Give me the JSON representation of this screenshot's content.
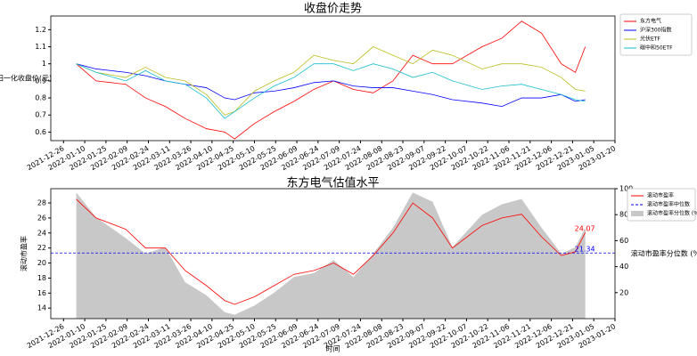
{
  "chart_data": [
    {
      "type": "line",
      "title": "收盘价走势",
      "ylabel": "归一化收盘价(元)",
      "x": [
        "2022-01-04",
        "2022-01-18",
        "2022-02-08",
        "2022-02-22",
        "2022-03-08",
        "2022-03-22",
        "2022-04-06",
        "2022-04-19",
        "2022-04-26",
        "2022-05-10",
        "2022-05-24",
        "2022-06-07",
        "2022-06-21",
        "2022-07-05",
        "2022-07-19",
        "2022-08-02",
        "2022-08-16",
        "2022-08-30",
        "2022-09-13",
        "2022-09-27",
        "2022-10-18",
        "2022-11-01",
        "2022-11-15",
        "2022-11-29",
        "2022-12-13",
        "2022-12-23",
        "2022-12-30"
      ],
      "series": [
        {
          "name": "东方电气",
          "color": "#ff0000",
          "values": [
            1.0,
            0.9,
            0.88,
            0.8,
            0.75,
            0.68,
            0.62,
            0.6,
            0.56,
            0.65,
            0.72,
            0.78,
            0.85,
            0.9,
            0.85,
            0.83,
            0.9,
            1.05,
            1.0,
            1.0,
            1.1,
            1.15,
            1.25,
            1.18,
            1.0,
            0.95,
            1.1
          ]
        },
        {
          "name": "沪深300指数",
          "color": "#0000ff",
          "values": [
            1.0,
            0.97,
            0.95,
            0.93,
            0.9,
            0.88,
            0.86,
            0.8,
            0.79,
            0.83,
            0.84,
            0.86,
            0.89,
            0.9,
            0.87,
            0.86,
            0.86,
            0.84,
            0.82,
            0.79,
            0.77,
            0.75,
            0.8,
            0.8,
            0.82,
            0.78,
            0.79
          ]
        },
        {
          "name": "光伏ETF",
          "color": "#bcbd22",
          "values": [
            1.0,
            0.95,
            0.92,
            0.98,
            0.92,
            0.9,
            0.82,
            0.7,
            0.72,
            0.84,
            0.9,
            0.95,
            1.05,
            1.02,
            1.0,
            1.1,
            1.05,
            1.0,
            1.08,
            1.05,
            0.97,
            1.0,
            1.0,
            0.98,
            0.92,
            0.85,
            0.84
          ]
        },
        {
          "name": "碳中和50ETF",
          "color": "#17becf",
          "values": [
            1.0,
            0.95,
            0.9,
            0.96,
            0.9,
            0.88,
            0.8,
            0.68,
            0.72,
            0.8,
            0.87,
            0.92,
            1.0,
            1.0,
            0.96,
            1.0,
            0.97,
            0.92,
            0.95,
            0.9,
            0.85,
            0.87,
            0.88,
            0.85,
            0.82,
            0.79,
            0.78
          ]
        }
      ],
      "xlim": [
        "2021-12-17",
        "2023-01-20"
      ],
      "xticks": [
        "2021-12-26",
        "2022-01-10",
        "2022-01-25",
        "2022-02-09",
        "2022-02-24",
        "2022-03-11",
        "2022-03-26",
        "2022-04-10",
        "2022-04-25",
        "2022-05-10",
        "2022-05-25",
        "2022-06-09",
        "2022-06-24",
        "2022-07-09",
        "2022-07-24",
        "2022-08-08",
        "2022-08-23",
        "2022-09-07",
        "2022-09-22",
        "2022-10-07",
        "2022-10-22",
        "2022-11-06",
        "2022-11-21",
        "2022-12-06",
        "2022-12-21",
        "2023-01-05",
        "2023-01-20"
      ],
      "ylim": [
        0.55,
        1.28
      ],
      "yticks": [
        0.6,
        0.7,
        0.8,
        0.9,
        1.0,
        1.1,
        1.2
      ],
      "legend": "outside right"
    },
    {
      "type": "line",
      "title": "东方电气估值水平",
      "xlabel": "时间",
      "ylabel": "滚动市盈率",
      "y2label": "滚动市盈率分位数 (%)",
      "x": [
        "2022-01-04",
        "2022-01-18",
        "2022-02-08",
        "2022-02-22",
        "2022-03-08",
        "2022-03-22",
        "2022-04-06",
        "2022-04-19",
        "2022-04-26",
        "2022-05-10",
        "2022-05-24",
        "2022-06-07",
        "2022-06-21",
        "2022-07-05",
        "2022-07-19",
        "2022-08-02",
        "2022-08-16",
        "2022-08-30",
        "2022-09-13",
        "2022-09-27",
        "2022-10-18",
        "2022-11-01",
        "2022-11-15",
        "2022-11-29",
        "2022-12-13",
        "2022-12-23",
        "2022-12-30"
      ],
      "series": [
        {
          "name": "滚动市盈率",
          "color": "#ff0000",
          "values": [
            28.5,
            26,
            24.5,
            22,
            22,
            19,
            17,
            15,
            14.5,
            15.5,
            17,
            18.5,
            19,
            20,
            18.5,
            21,
            24,
            28,
            26,
            22,
            25,
            26,
            26.5,
            23.5,
            21,
            21.5,
            24.07
          ]
        },
        {
          "name": "滚动市盈率分位数 (%)",
          "color": "#c8c8c8",
          "kind": "area",
          "axis": "y2",
          "values": [
            97,
            78,
            62,
            50,
            55,
            28,
            18,
            5,
            3,
            10,
            20,
            32,
            35,
            45,
            32,
            50,
            70,
            97,
            90,
            55,
            80,
            88,
            92,
            70,
            50,
            55,
            70
          ]
        }
      ],
      "median": {
        "name": "滚动市盈率中位数",
        "color": "#0000ff",
        "value": 21.34
      },
      "annotations": [
        {
          "text": "24.07",
          "color": "#ff0000"
        },
        {
          "text": "21.34",
          "color": "#0000ff"
        }
      ],
      "xlim": [
        "2021-12-17",
        "2023-01-20"
      ],
      "xticks": [
        "2021-12-26",
        "2022-01-10",
        "2022-01-25",
        "2022-02-09",
        "2022-02-24",
        "2022-03-11",
        "2022-03-26",
        "2022-04-10",
        "2022-04-25",
        "2022-05-10",
        "2022-05-25",
        "2022-06-09",
        "2022-06-24",
        "2022-07-09",
        "2022-07-24",
        "2022-08-08",
        "2022-08-23",
        "2022-09-07",
        "2022-09-22",
        "2022-10-07",
        "2022-10-22",
        "2022-11-06",
        "2022-11-21",
        "2022-12-06",
        "2022-12-21",
        "2023-01-05",
        "2023-01-20"
      ],
      "ylim": [
        12.6,
        29.9
      ],
      "yticks": [
        14,
        16,
        18,
        20,
        22,
        24,
        26,
        28
      ],
      "y2lim": [
        0,
        100
      ],
      "y2ticks": [
        20,
        40,
        60,
        80,
        100
      ],
      "legend": "outside right"
    }
  ]
}
